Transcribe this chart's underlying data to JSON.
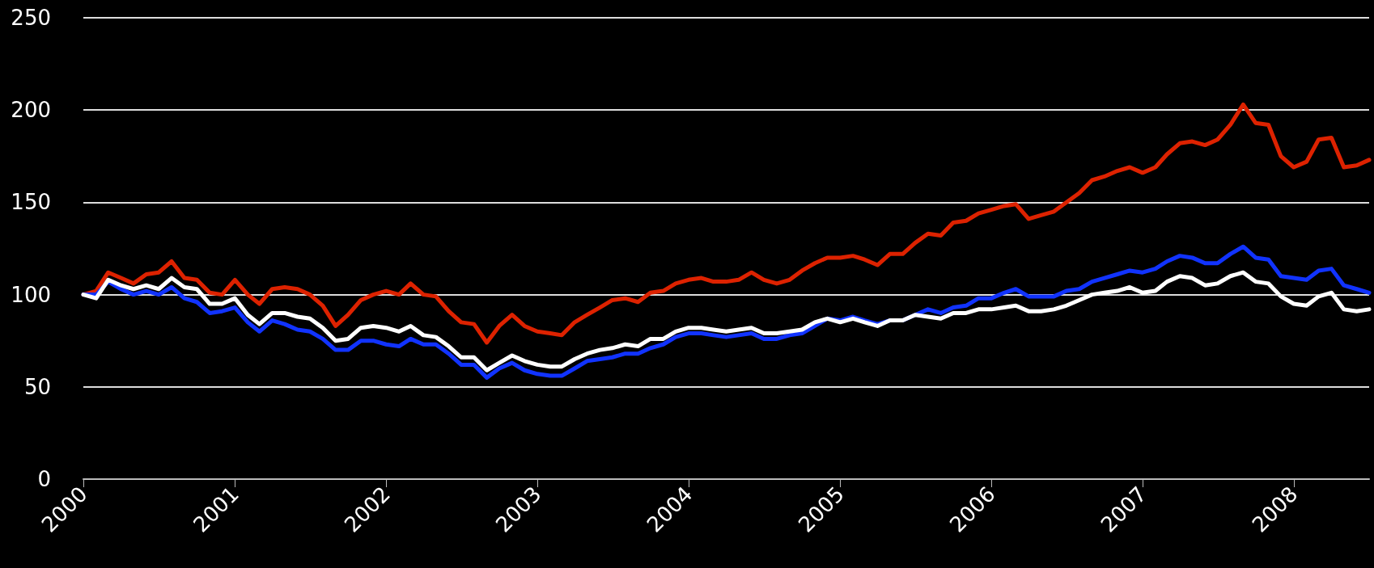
{
  "chart_data": {
    "type": "line",
    "x": [
      "2000-01",
      "2000-02",
      "2000-03",
      "2000-04",
      "2000-05",
      "2000-06",
      "2000-07",
      "2000-08",
      "2000-09",
      "2000-10",
      "2000-11",
      "2000-12",
      "2001-01",
      "2001-02",
      "2001-03",
      "2001-04",
      "2001-05",
      "2001-06",
      "2001-07",
      "2001-08",
      "2001-09",
      "2001-10",
      "2001-11",
      "2001-12",
      "2002-01",
      "2002-02",
      "2002-03",
      "2002-04",
      "2002-05",
      "2002-06",
      "2002-07",
      "2002-08",
      "2002-09",
      "2002-10",
      "2002-11",
      "2002-12",
      "2003-01",
      "2003-02",
      "2003-03",
      "2003-04",
      "2003-05",
      "2003-06",
      "2003-07",
      "2003-08",
      "2003-09",
      "2003-10",
      "2003-11",
      "2003-12",
      "2004-01",
      "2004-02",
      "2004-03",
      "2004-04",
      "2004-05",
      "2004-06",
      "2004-07",
      "2004-08",
      "2004-09",
      "2004-10",
      "2004-11",
      "2004-12",
      "2005-01",
      "2005-02",
      "2005-03",
      "2005-04",
      "2005-05",
      "2005-06",
      "2005-07",
      "2005-08",
      "2005-09",
      "2005-10",
      "2005-11",
      "2005-12",
      "2006-01",
      "2006-02",
      "2006-03",
      "2006-04",
      "2006-05",
      "2006-06",
      "2006-07",
      "2006-08",
      "2006-09",
      "2006-10",
      "2006-11",
      "2006-12",
      "2007-01",
      "2007-02",
      "2007-03",
      "2007-04",
      "2007-05",
      "2007-06",
      "2007-07",
      "2007-08",
      "2007-09",
      "2007-10",
      "2007-11",
      "2007-12",
      "2008-01",
      "2008-02",
      "2008-03",
      "2008-04",
      "2008-05",
      "2008-06",
      "2008-07"
    ],
    "series": [
      {
        "color": "#dd2200",
        "values": [
          100,
          102,
          112,
          109,
          106,
          111,
          112,
          118,
          109,
          108,
          101,
          100,
          108,
          100,
          95,
          103,
          104,
          103,
          100,
          94,
          83,
          89,
          97,
          100,
          102,
          100,
          106,
          100,
          99,
          91,
          85,
          84,
          74,
          83,
          89,
          83,
          80,
          79,
          78,
          85,
          89,
          93,
          97,
          98,
          96,
          101,
          102,
          106,
          108,
          109,
          107,
          107,
          108,
          112,
          108,
          106,
          108,
          113,
          117,
          120,
          120,
          121,
          119,
          116,
          122,
          122,
          128,
          133,
          132,
          139,
          140,
          144,
          146,
          148,
          149,
          141,
          143,
          145,
          150,
          155,
          162,
          164,
          167,
          169,
          166,
          169,
          176,
          182,
          183,
          181,
          184,
          192,
          203,
          193,
          192,
          175,
          169,
          172,
          184,
          185,
          169,
          170,
          173
        ]
      },
      {
        "color": "#1133ff",
        "values": [
          100,
          100,
          107,
          103,
          100,
          102,
          100,
          104,
          98,
          96,
          90,
          91,
          93,
          85,
          80,
          86,
          84,
          81,
          80,
          76,
          70,
          70,
          75,
          75,
          73,
          72,
          76,
          73,
          73,
          68,
          62,
          62,
          55,
          60,
          63,
          59,
          57,
          56,
          56,
          60,
          64,
          65,
          66,
          68,
          68,
          71,
          73,
          77,
          79,
          79,
          78,
          77,
          78,
          79,
          76,
          76,
          78,
          79,
          83,
          87,
          86,
          88,
          86,
          84,
          86,
          86,
          89,
          92,
          90,
          93,
          94,
          98,
          98,
          101,
          103,
          99,
          99,
          99,
          102,
          103,
          107,
          109,
          111,
          113,
          112,
          114,
          118,
          121,
          120,
          117,
          117,
          122,
          126,
          120,
          119,
          110,
          109,
          108,
          113,
          114,
          105,
          103,
          101
        ]
      },
      {
        "color": "#ffffff",
        "values": [
          100,
          98,
          108,
          105,
          103,
          105,
          103,
          109,
          104,
          103,
          95,
          95,
          98,
          89,
          84,
          90,
          90,
          88,
          87,
          82,
          75,
          76,
          82,
          83,
          82,
          80,
          83,
          78,
          77,
          72,
          66,
          66,
          59,
          63,
          67,
          64,
          62,
          61,
          61,
          65,
          68,
          70,
          71,
          73,
          72,
          76,
          76,
          80,
          82,
          82,
          81,
          80,
          81,
          82,
          79,
          79,
          80,
          81,
          85,
          87,
          85,
          87,
          85,
          83,
          86,
          86,
          89,
          88,
          87,
          90,
          90,
          92,
          92,
          93,
          94,
          91,
          91,
          92,
          94,
          97,
          100,
          101,
          102,
          104,
          101,
          102,
          107,
          110,
          109,
          105,
          106,
          110,
          112,
          107,
          106,
          99,
          95,
          94,
          99,
          101,
          92,
          91,
          92
        ]
      }
    ],
    "xlim": [
      "2000-01",
      "2008-07"
    ],
    "xticks": [
      {
        "value": "2000",
        "label": "2000"
      },
      {
        "value": "2001",
        "label": "2001"
      },
      {
        "value": "2002",
        "label": "2002"
      },
      {
        "value": "2003",
        "label": "2003"
      },
      {
        "value": "2004",
        "label": "2004"
      },
      {
        "value": "2005",
        "label": "2005"
      },
      {
        "value": "2006",
        "label": "2006"
      },
      {
        "value": "2007",
        "label": "2007"
      },
      {
        "value": "2008",
        "label": "2008"
      }
    ],
    "ylim": [
      0,
      250
    ],
    "yticks": [
      0,
      50,
      100,
      150,
      200,
      250
    ],
    "grid": "y",
    "marker": "none",
    "line_style": "solid"
  }
}
